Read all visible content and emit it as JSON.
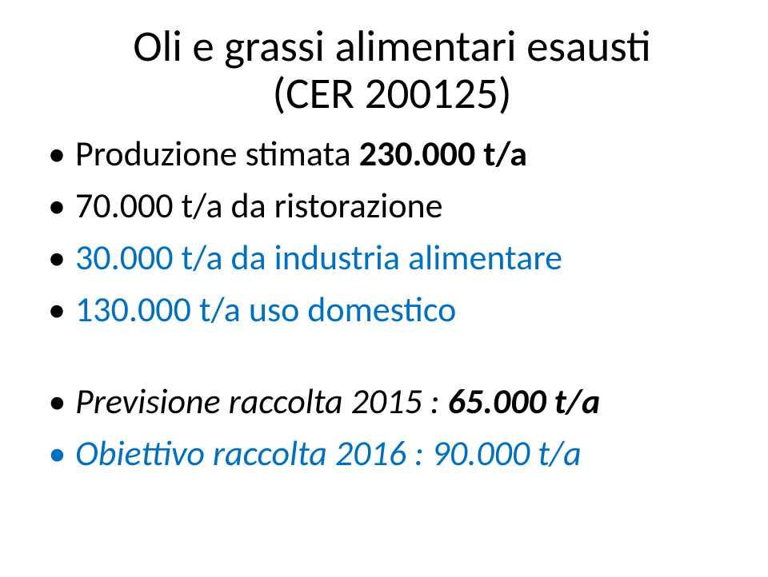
{
  "title_line1": "Oli e grassi alimentari esausti",
  "title_line2": "(CER 200125)",
  "bullets": {
    "b1_prefix": "Produzione stimata ",
    "b1_bold": "230.000 t/a",
    "b2": "70.000 t/a da ristorazione",
    "b3": "30.000 t/a da industria alimentare",
    "b4": "130.000 t/a uso domestico",
    "b5_prefix": "Previsione raccolta 2015 : ",
    "b5_bold": "65.000 t/a",
    "b6": "Obiettivo raccolta 2016 : 90.000 t/a"
  },
  "colors": {
    "text": "#000000",
    "blue": "#0070c0",
    "background": "#ffffff"
  },
  "typography": {
    "title_fontsize": 55,
    "bullet_fontsize": 44,
    "font_family": "Calibri"
  }
}
